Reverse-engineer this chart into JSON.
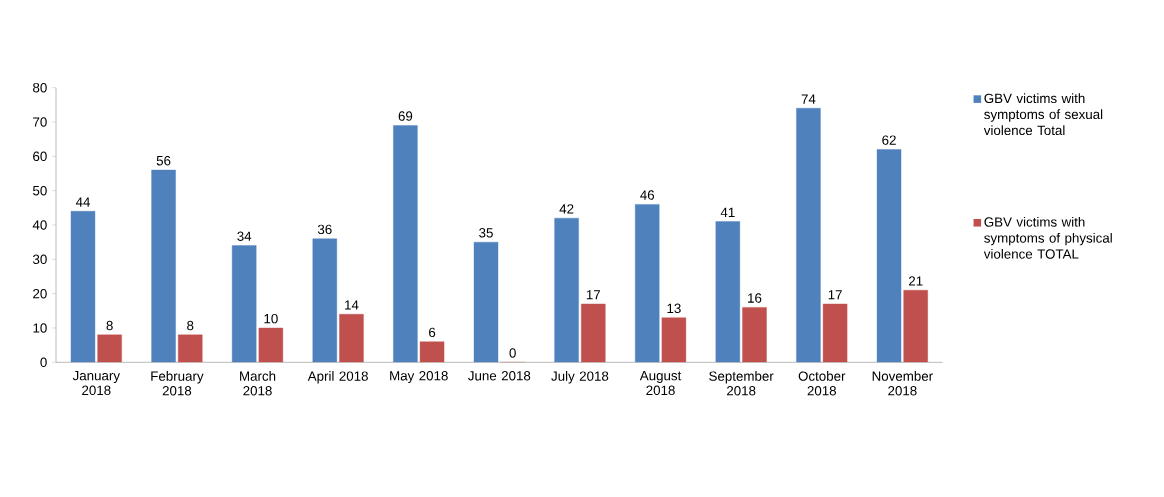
{
  "chart_data": {
    "type": "bar",
    "categories": [
      "January 2018",
      "February 2018",
      "March 2018",
      "April 2018",
      "May 2018",
      "June 2018",
      "July 2018",
      "August 2018",
      "September 2018",
      "October 2018",
      "November 2018"
    ],
    "series": [
      {
        "name": "GBV victims with symptoms of sexual violence Total",
        "color": "#4f81bd",
        "values": [
          44,
          56,
          34,
          36,
          69,
          35,
          42,
          46,
          41,
          74,
          62
        ]
      },
      {
        "name": "GBV victims with symptoms of physical violence TOTAL",
        "color": "#c0504d",
        "values": [
          8,
          8,
          10,
          14,
          6,
          0,
          17,
          13,
          16,
          17,
          21
        ]
      }
    ],
    "ylim": [
      0,
      80
    ],
    "yticks": [
      0,
      10,
      20,
      30,
      40,
      50,
      60,
      70,
      80
    ],
    "data_labels": true,
    "legend": "right",
    "grid": false
  }
}
